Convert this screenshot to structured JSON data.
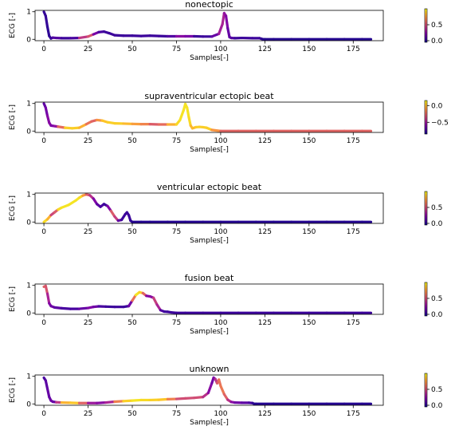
{
  "chart_data": [
    {
      "type": "line",
      "title": "nonectopic",
      "xlabel": "Samples[-]",
      "ylabel": "ECG [-]",
      "xlim": [
        -5,
        192
      ],
      "ylim": [
        -0.05,
        1.05
      ],
      "xticks": [
        0,
        25,
        50,
        75,
        100,
        125,
        150,
        175
      ],
      "yticks": [
        0,
        1
      ],
      "colorbar": {
        "ticks": [
          0.0,
          0.5
        ],
        "labels": [
          "0.0",
          "0.5"
        ],
        "range": [
          -0.05,
          1.0
        ]
      },
      "series": [
        {
          "x": [
            0,
            1,
            2,
            3,
            4,
            5,
            7,
            10,
            15,
            20,
            25,
            28,
            31,
            34,
            37,
            40,
            45,
            50,
            55,
            60,
            65,
            70,
            75,
            80,
            85,
            90,
            95,
            99,
            101,
            102,
            103,
            104,
            105,
            106,
            108,
            112,
            118,
            122,
            123,
            124,
            125,
            130,
            140,
            150,
            160,
            170,
            180,
            185
          ],
          "y": [
            1.0,
            0.85,
            0.45,
            0.12,
            0.03,
            0.06,
            0.05,
            0.04,
            0.04,
            0.05,
            0.1,
            0.18,
            0.26,
            0.28,
            0.22,
            0.15,
            0.13,
            0.13,
            0.12,
            0.13,
            0.12,
            0.11,
            0.11,
            0.11,
            0.11,
            0.1,
            0.1,
            0.2,
            0.55,
            0.95,
            0.85,
            0.4,
            0.08,
            0.05,
            0.04,
            0.05,
            0.04,
            0.04,
            0.02,
            0.0,
            0.0,
            0.0,
            0.0,
            0.0,
            0.0,
            0.0,
            0.0,
            0.0
          ],
          "c": [
            0.02,
            0.05,
            0.02,
            0.02,
            0.02,
            0.05,
            0.15,
            0.05,
            0.05,
            0.1,
            0.75,
            0.3,
            0.1,
            0.05,
            0.05,
            0.05,
            0.05,
            0.05,
            0.05,
            0.05,
            0.05,
            0.05,
            0.15,
            0.35,
            0.05,
            0.05,
            0.05,
            0.25,
            0.4,
            0.3,
            0.25,
            0.2,
            0.1,
            0.15,
            0.05,
            0.05,
            0.05,
            0.05,
            0.05,
            0.0,
            0.0,
            0.0,
            0.0,
            0.0,
            0.0,
            0.0,
            0.0,
            0.0
          ]
        }
      ]
    },
    {
      "type": "line",
      "title": "supraventricular ectopic beat",
      "xlabel": "Samples[-]",
      "ylabel": "ECG [-]",
      "xlim": [
        -5,
        192
      ],
      "ylim": [
        -0.05,
        1.05
      ],
      "xticks": [
        0,
        25,
        50,
        75,
        100,
        125,
        150,
        175
      ],
      "yticks": [
        0,
        1
      ],
      "colorbar": {
        "ticks": [
          0.0,
          -0.5
        ],
        "labels": [
          "0.0",
          "−0.5"
        ],
        "range": [
          -0.85,
          0.15
        ]
      },
      "series": [
        {
          "x": [
            0,
            1,
            2,
            3,
            4,
            6,
            8,
            12,
            16,
            20,
            24,
            27,
            30,
            33,
            36,
            40,
            45,
            50,
            55,
            60,
            65,
            70,
            75,
            77,
            79,
            80,
            81,
            82,
            83,
            84,
            86,
            88,
            90,
            92,
            95,
            100,
            110,
            120,
            130,
            140,
            150,
            160,
            170,
            180,
            185
          ],
          "y": [
            1.0,
            0.85,
            0.55,
            0.3,
            0.2,
            0.18,
            0.16,
            0.12,
            0.1,
            0.12,
            0.25,
            0.35,
            0.4,
            0.38,
            0.32,
            0.28,
            0.27,
            0.26,
            0.25,
            0.25,
            0.24,
            0.24,
            0.24,
            0.4,
            0.75,
            0.98,
            0.85,
            0.5,
            0.2,
            0.1,
            0.14,
            0.15,
            0.14,
            0.12,
            0.04,
            0.0,
            0.0,
            0.0,
            0.0,
            0.0,
            0.0,
            0.0,
            0.0,
            0.0,
            0.0
          ],
          "c": [
            -0.7,
            -0.65,
            -0.6,
            -0.55,
            -0.6,
            -0.6,
            -0.5,
            0.05,
            0.05,
            0.05,
            -0.1,
            -0.3,
            -0.2,
            0.0,
            0.05,
            0.05,
            0.05,
            -0.05,
            -0.1,
            -0.2,
            -0.35,
            -0.1,
            0.05,
            0.1,
            0.1,
            0.1,
            0.1,
            0.1,
            0.05,
            -0.05,
            0.05,
            0.05,
            0.05,
            0.05,
            0.05,
            -0.25,
            -0.25,
            -0.25,
            -0.25,
            -0.25,
            -0.25,
            -0.25,
            -0.25,
            -0.25,
            -0.25
          ]
        }
      ]
    },
    {
      "type": "line",
      "title": "ventricular ectopic beat",
      "xlabel": "Samples[-]",
      "ylabel": "ECG [-]",
      "xlim": [
        -5,
        192
      ],
      "ylim": [
        -0.05,
        1.05
      ],
      "xticks": [
        0,
        25,
        50,
        75,
        100,
        125,
        150,
        175
      ],
      "yticks": [
        0,
        1
      ],
      "colorbar": {
        "ticks": [
          0.0,
          0.5
        ],
        "labels": [
          "0.0",
          "0.5"
        ],
        "range": [
          -0.05,
          1.0
        ]
      },
      "series": [
        {
          "x": [
            0,
            2,
            4,
            6,
            8,
            10,
            14,
            18,
            20,
            22,
            24,
            26,
            28,
            30,
            32,
            34,
            36,
            38,
            40,
            42,
            44,
            46,
            47,
            48,
            49,
            50,
            55,
            60,
            70,
            80,
            90,
            100,
            110,
            120,
            130,
            140,
            150,
            160,
            170,
            180,
            185
          ],
          "y": [
            0.0,
            0.1,
            0.25,
            0.35,
            0.45,
            0.52,
            0.62,
            0.78,
            0.88,
            0.96,
            1.0,
            0.97,
            0.85,
            0.65,
            0.55,
            0.65,
            0.58,
            0.4,
            0.2,
            0.05,
            0.08,
            0.28,
            0.35,
            0.25,
            0.05,
            0.0,
            0.0,
            0.0,
            0.0,
            0.0,
            0.0,
            0.0,
            0.0,
            0.0,
            0.0,
            0.0,
            0.0,
            0.0,
            0.0,
            0.0,
            0.0
          ],
          "c": [
            0.95,
            0.9,
            0.75,
            0.2,
            0.9,
            0.95,
            0.95,
            0.95,
            0.95,
            0.9,
            0.6,
            0.5,
            0.3,
            0.15,
            0.1,
            0.05,
            0.05,
            0.4,
            0.7,
            0.2,
            0.05,
            0.05,
            0.05,
            0.05,
            0.05,
            0.0,
            0.0,
            0.0,
            0.0,
            0.0,
            0.0,
            0.0,
            0.0,
            0.0,
            0.0,
            0.0,
            0.0,
            0.0,
            0.0,
            0.0,
            0.0
          ]
        }
      ]
    },
    {
      "type": "line",
      "title": "fusion beat",
      "xlabel": "Samples[-]",
      "ylabel": "ECG [-]",
      "xlim": [
        -5,
        192
      ],
      "ylim": [
        -0.05,
        1.05
      ],
      "xticks": [
        0,
        25,
        50,
        75,
        100,
        125,
        150,
        175
      ],
      "yticks": [
        0,
        1
      ],
      "colorbar": {
        "ticks": [
          0.0,
          0.5
        ],
        "labels": [
          "0.0",
          "0.5"
        ],
        "range": [
          -0.05,
          1.0
        ]
      },
      "series": [
        {
          "x": [
            0,
            1,
            2,
            3,
            4,
            6,
            10,
            15,
            20,
            25,
            28,
            31,
            35,
            40,
            45,
            48,
            50,
            52,
            54,
            56,
            58,
            60,
            62,
            64,
            66,
            68,
            70,
            72,
            75,
            80,
            90,
            100,
            110,
            120,
            130,
            140,
            150,
            160,
            170,
            180,
            185
          ],
          "y": [
            0.95,
            0.98,
            0.7,
            0.35,
            0.25,
            0.2,
            0.17,
            0.15,
            0.15,
            0.18,
            0.22,
            0.24,
            0.23,
            0.22,
            0.22,
            0.25,
            0.45,
            0.65,
            0.75,
            0.72,
            0.62,
            0.6,
            0.55,
            0.3,
            0.1,
            0.05,
            0.04,
            0.02,
            0.0,
            0.0,
            0.0,
            0.0,
            0.0,
            0.0,
            0.0,
            0.0,
            0.0,
            0.0,
            0.0,
            0.0,
            0.0
          ],
          "c": [
            0.55,
            0.6,
            0.45,
            0.25,
            0.2,
            0.15,
            0.1,
            0.05,
            0.1,
            0.2,
            0.25,
            0.1,
            0.05,
            0.05,
            0.05,
            0.05,
            0.3,
            0.95,
            0.95,
            0.85,
            0.3,
            0.15,
            0.35,
            0.55,
            0.15,
            0.05,
            0.05,
            0.05,
            0.05,
            0.05,
            0.05,
            0.05,
            0.05,
            0.05,
            0.05,
            0.05,
            0.05,
            0.05,
            0.05,
            0.05,
            0.05
          ]
        }
      ]
    },
    {
      "type": "line",
      "title": "unknown",
      "xlabel": "Samples[-]",
      "ylabel": "ECG [-]",
      "xlim": [
        -5,
        192
      ],
      "ylim": [
        -0.05,
        1.05
      ],
      "xticks": [
        0,
        25,
        50,
        75,
        100,
        125,
        150,
        175
      ],
      "yticks": [
        0,
        1
      ],
      "colorbar": {
        "ticks": [
          0.0,
          0.5
        ],
        "labels": [
          "0.0",
          "0.5"
        ],
        "range": [
          -0.05,
          1.0
        ]
      },
      "series": [
        {
          "x": [
            0,
            1,
            2,
            3,
            4,
            5,
            7,
            10,
            15,
            20,
            25,
            30,
            35,
            40,
            45,
            50,
            55,
            60,
            65,
            70,
            75,
            80,
            85,
            90,
            93,
            95,
            96,
            97,
            98,
            99,
            100,
            102,
            104,
            106,
            108,
            112,
            116,
            118,
            119,
            120,
            130,
            140,
            150,
            160,
            170,
            180,
            185
          ],
          "y": [
            0.95,
            0.85,
            0.55,
            0.25,
            0.12,
            0.08,
            0.06,
            0.05,
            0.04,
            0.03,
            0.03,
            0.03,
            0.05,
            0.08,
            0.1,
            0.12,
            0.14,
            0.14,
            0.15,
            0.17,
            0.18,
            0.2,
            0.22,
            0.25,
            0.4,
            0.75,
            0.95,
            0.9,
            0.75,
            0.88,
            0.65,
            0.35,
            0.15,
            0.07,
            0.05,
            0.04,
            0.04,
            0.03,
            0.0,
            0.0,
            0.0,
            0.0,
            0.0,
            0.0,
            0.0,
            0.0,
            0.0
          ],
          "c": [
            0.05,
            0.1,
            0.15,
            0.15,
            0.15,
            0.2,
            0.1,
            0.75,
            0.9,
            0.85,
            0.3,
            0.3,
            0.2,
            0.5,
            0.85,
            0.95,
            0.95,
            0.9,
            0.9,
            0.85,
            0.5,
            0.5,
            0.5,
            0.5,
            0.3,
            0.2,
            0.15,
            0.3,
            0.5,
            0.6,
            0.65,
            0.65,
            0.5,
            0.3,
            0.2,
            0.15,
            0.1,
            0.05,
            0.0,
            0.0,
            0.0,
            0.0,
            0.0,
            0.0,
            0.0,
            0.0,
            0.0
          ]
        }
      ]
    }
  ]
}
